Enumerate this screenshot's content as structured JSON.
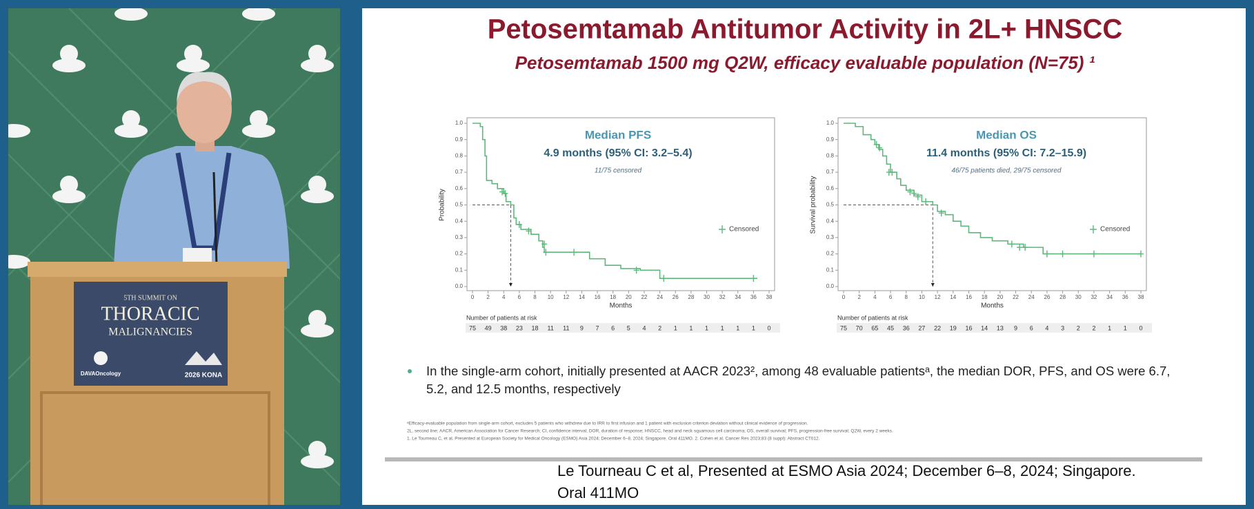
{
  "video": {
    "podium": [
      "5TH SUMMIT ON",
      "THORACIC",
      "MALIGNANCIES",
      "DAVAOncology",
      "2026 KONA"
    ]
  },
  "slide": {
    "title": "Petosemtamab Antitumor Activity in 2L+ HNSCC",
    "subtitle": "Petosemtamab 1500 mg Q2W, efficacy evaluable population (N=75) ¹",
    "charts": [
      {
        "type": "step",
        "heading": "Median PFS",
        "estimate": "4.9 months (95% CI: 3.2–5.4)",
        "note": "11/75 censored",
        "ylabel": "Probability",
        "xlabel": "Months",
        "legend": "Censored",
        "color": "#5cb87a",
        "median": 4.9,
        "median_y": 0.5,
        "xlim": [
          0,
          38
        ],
        "xticks": [
          0,
          2,
          4,
          6,
          8,
          10,
          12,
          14,
          16,
          18,
          20,
          22,
          24,
          26,
          28,
          30,
          32,
          34,
          36,
          38
        ],
        "ylim": [
          0,
          1
        ],
        "yticks": [
          {
            "value": 0,
            "label": "0.0"
          },
          {
            "value": 0.1,
            "label": "0.1"
          },
          {
            "value": 0.2,
            "label": "0.2"
          },
          {
            "value": 0.3,
            "label": "0.3"
          },
          {
            "value": 0.4,
            "label": "0.4"
          },
          {
            "value": 0.5,
            "label": "0.5"
          },
          {
            "value": 0.6,
            "label": "0.6"
          },
          {
            "value": 0.7,
            "label": "0.7"
          },
          {
            "value": 0.8,
            "label": "0.8"
          },
          {
            "value": 0.9,
            "label": "0.9"
          },
          {
            "value": 1,
            "label": "1.0"
          }
        ],
        "curve": {
          "x": [
            0,
            1,
            1.3,
            1.6,
            1.8,
            2.5,
            3.2,
            4,
            4.3,
            4.9,
            5.3,
            5.6,
            6.2,
            7.5,
            8.5,
            9,
            9.2,
            13,
            15,
            17,
            19,
            21.5,
            24,
            36.5
          ],
          "y": [
            1,
            0.98,
            0.9,
            0.8,
            0.65,
            0.63,
            0.6,
            0.57,
            0.52,
            0.5,
            0.42,
            0.38,
            0.35,
            0.32,
            0.28,
            0.24,
            0.21,
            0.21,
            0.17,
            0.13,
            0.11,
            0.1,
            0.05,
            0.05
          ]
        },
        "censored": {
          "x": [
            3.8,
            4.2,
            6,
            7.2,
            9.2,
            9.4,
            13,
            21,
            24.5,
            36
          ],
          "y": [
            0.58,
            0.57,
            0.38,
            0.34,
            0.26,
            0.21,
            0.21,
            0.1,
            0.05,
            0.05
          ]
        },
        "risk_label": "Number of patients at risk",
        "at_risk": [
          75,
          49,
          38,
          23,
          18,
          11,
          11,
          9,
          7,
          6,
          5,
          4,
          2,
          1,
          1,
          1,
          1,
          1,
          1,
          0
        ]
      },
      {
        "type": "step",
        "heading": "Median OS",
        "estimate": "11.4 months (95% CI: 7.2–15.9)",
        "note": "46/75 patients died, 29/75 censored",
        "ylabel": "Survival probability",
        "xlabel": "Months",
        "legend": "Censored",
        "color": "#5cb87a",
        "median": 11.4,
        "median_y": 0.5,
        "xlim": [
          0,
          38
        ],
        "xticks": [
          0,
          2,
          4,
          6,
          8,
          10,
          12,
          14,
          16,
          18,
          20,
          22,
          24,
          26,
          28,
          30,
          32,
          34,
          36,
          38
        ],
        "ylim": [
          0,
          1
        ],
        "yticks": [
          {
            "value": 0,
            "label": "0.0"
          },
          {
            "value": 0.1,
            "label": "0.1"
          },
          {
            "value": 0.2,
            "label": "0.2"
          },
          {
            "value": 0.3,
            "label": "0.3"
          },
          {
            "value": 0.4,
            "label": "0.4"
          },
          {
            "value": 0.5,
            "label": "0.5"
          },
          {
            "value": 0.6,
            "label": "0.6"
          },
          {
            "value": 0.7,
            "label": "0.7"
          },
          {
            "value": 0.8,
            "label": "0.8"
          },
          {
            "value": 0.9,
            "label": "0.9"
          },
          {
            "value": 1,
            "label": "1.0"
          }
        ],
        "curve": {
          "x": [
            0,
            1.5,
            2.5,
            3.5,
            4,
            4.5,
            5,
            5.5,
            6,
            6.8,
            7.3,
            8,
            9,
            10,
            11.4,
            12,
            13,
            14,
            15,
            16,
            17.5,
            19,
            21,
            23,
            25.5,
            38
          ],
          "y": [
            1,
            0.98,
            0.93,
            0.9,
            0.87,
            0.84,
            0.8,
            0.75,
            0.7,
            0.66,
            0.62,
            0.59,
            0.56,
            0.52,
            0.5,
            0.46,
            0.44,
            0.4,
            0.37,
            0.33,
            0.3,
            0.28,
            0.26,
            0.24,
            0.2,
            0.2
          ]
        },
        "censored": {
          "x": [
            4.2,
            4.6,
            5.8,
            6.2,
            8.5,
            9,
            9.5,
            10.5,
            12.5,
            21.5,
            22.5,
            23.2,
            26,
            28,
            32,
            38
          ],
          "y": [
            0.87,
            0.85,
            0.7,
            0.7,
            0.58,
            0.57,
            0.55,
            0.52,
            0.45,
            0.26,
            0.24,
            0.24,
            0.2,
            0.2,
            0.2,
            0.2
          ]
        },
        "risk_label": "Number of patients at risk",
        "at_risk": [
          75,
          70,
          65,
          45,
          36,
          27,
          22,
          19,
          16,
          14,
          13,
          9,
          6,
          4,
          3,
          2,
          2,
          1,
          1,
          0
        ]
      }
    ],
    "bullet": [
      "In the single-arm cohort, initially presented at AACR 2023², among 48 evaluable patientsᵃ, the median DOR, PFS, and OS were 6.7,",
      "5.2, and 12.5 months, respectively"
    ],
    "footnotes": [
      "ᵃEfficacy-evaluable population from single-arm cohort, excludes 5 patients who withdrew due to IRR to first infusion and 1 patient with exclusion criterion deviation without clinical evidence of progression.",
      "2L, second line; AACR, American Association for Cancer Research; CI, confidence interval; DOR, duration of response; HNSCC, head and neck squamous cell carcinoma; OS, overall survival; PFS, progression-free survival; Q2W, every 2 weeks.",
      "1. Le Tourneau C, et al. Presented at European Society for Medical Oncology (ESMO) Asia 2024; December 6–8, 2024; Singapore. Oral 411MO. 2. Cohen et al. Cancer Res 2023;83 (8 suppl): Abstract CT012."
    ],
    "reference": [
      "Le Tourneau C et al, Presented at ESMO Asia 2024; December 6–8, 2024; Singapore.",
      "Oral 411MO"
    ]
  }
}
